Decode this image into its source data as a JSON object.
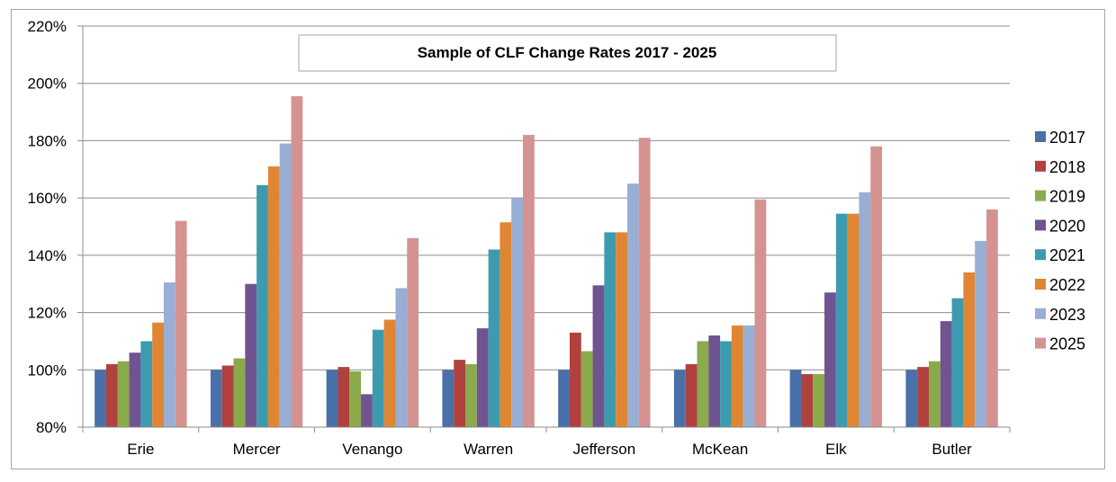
{
  "chart_data": {
    "type": "bar",
    "title": "Sample of CLF Change Rates 2017 - 2025",
    "xlabel": "",
    "ylabel": "",
    "ylim": [
      80,
      220
    ],
    "yticks": [
      "80%",
      "100%",
      "120%",
      "140%",
      "160%",
      "180%",
      "200%",
      "220%"
    ],
    "ytick_values": [
      80,
      100,
      120,
      140,
      160,
      180,
      200,
      220
    ],
    "grid": true,
    "legend_position": "right",
    "categories": [
      "Erie",
      "Mercer",
      "Venango",
      "Warren",
      "Jefferson",
      "McKean",
      "Elk",
      "Butler"
    ],
    "series": [
      {
        "name": "2017",
        "color": "#4a70a9",
        "values": [
          100,
          100,
          100,
          100,
          100,
          100,
          100,
          100
        ]
      },
      {
        "name": "2018",
        "color": "#b0413e",
        "values": [
          102,
          101.5,
          101,
          103.5,
          113,
          102,
          98.5,
          101
        ]
      },
      {
        "name": "2019",
        "color": "#8aaa4b",
        "values": [
          103,
          104,
          99.5,
          102,
          106.5,
          110,
          98.5,
          103
        ]
      },
      {
        "name": "2020",
        "color": "#6f548f",
        "values": [
          106,
          130,
          91.5,
          114.5,
          129.5,
          112,
          127,
          117
        ]
      },
      {
        "name": "2021",
        "color": "#3d9bb0",
        "values": [
          110,
          164.5,
          114,
          142,
          148,
          110,
          154.5,
          125
        ]
      },
      {
        "name": "2022",
        "color": "#e08633",
        "values": [
          116.5,
          171,
          117.5,
          151.5,
          148,
          115.5,
          154.5,
          134
        ]
      },
      {
        "name": "2023",
        "color": "#98aed4",
        "values": [
          130.5,
          179,
          128.5,
          160,
          165,
          115.5,
          162,
          145
        ]
      },
      {
        "name": "2025",
        "color": "#d49391",
        "values": [
          152,
          195.5,
          146,
          182,
          181,
          159.5,
          178,
          156
        ]
      }
    ]
  }
}
